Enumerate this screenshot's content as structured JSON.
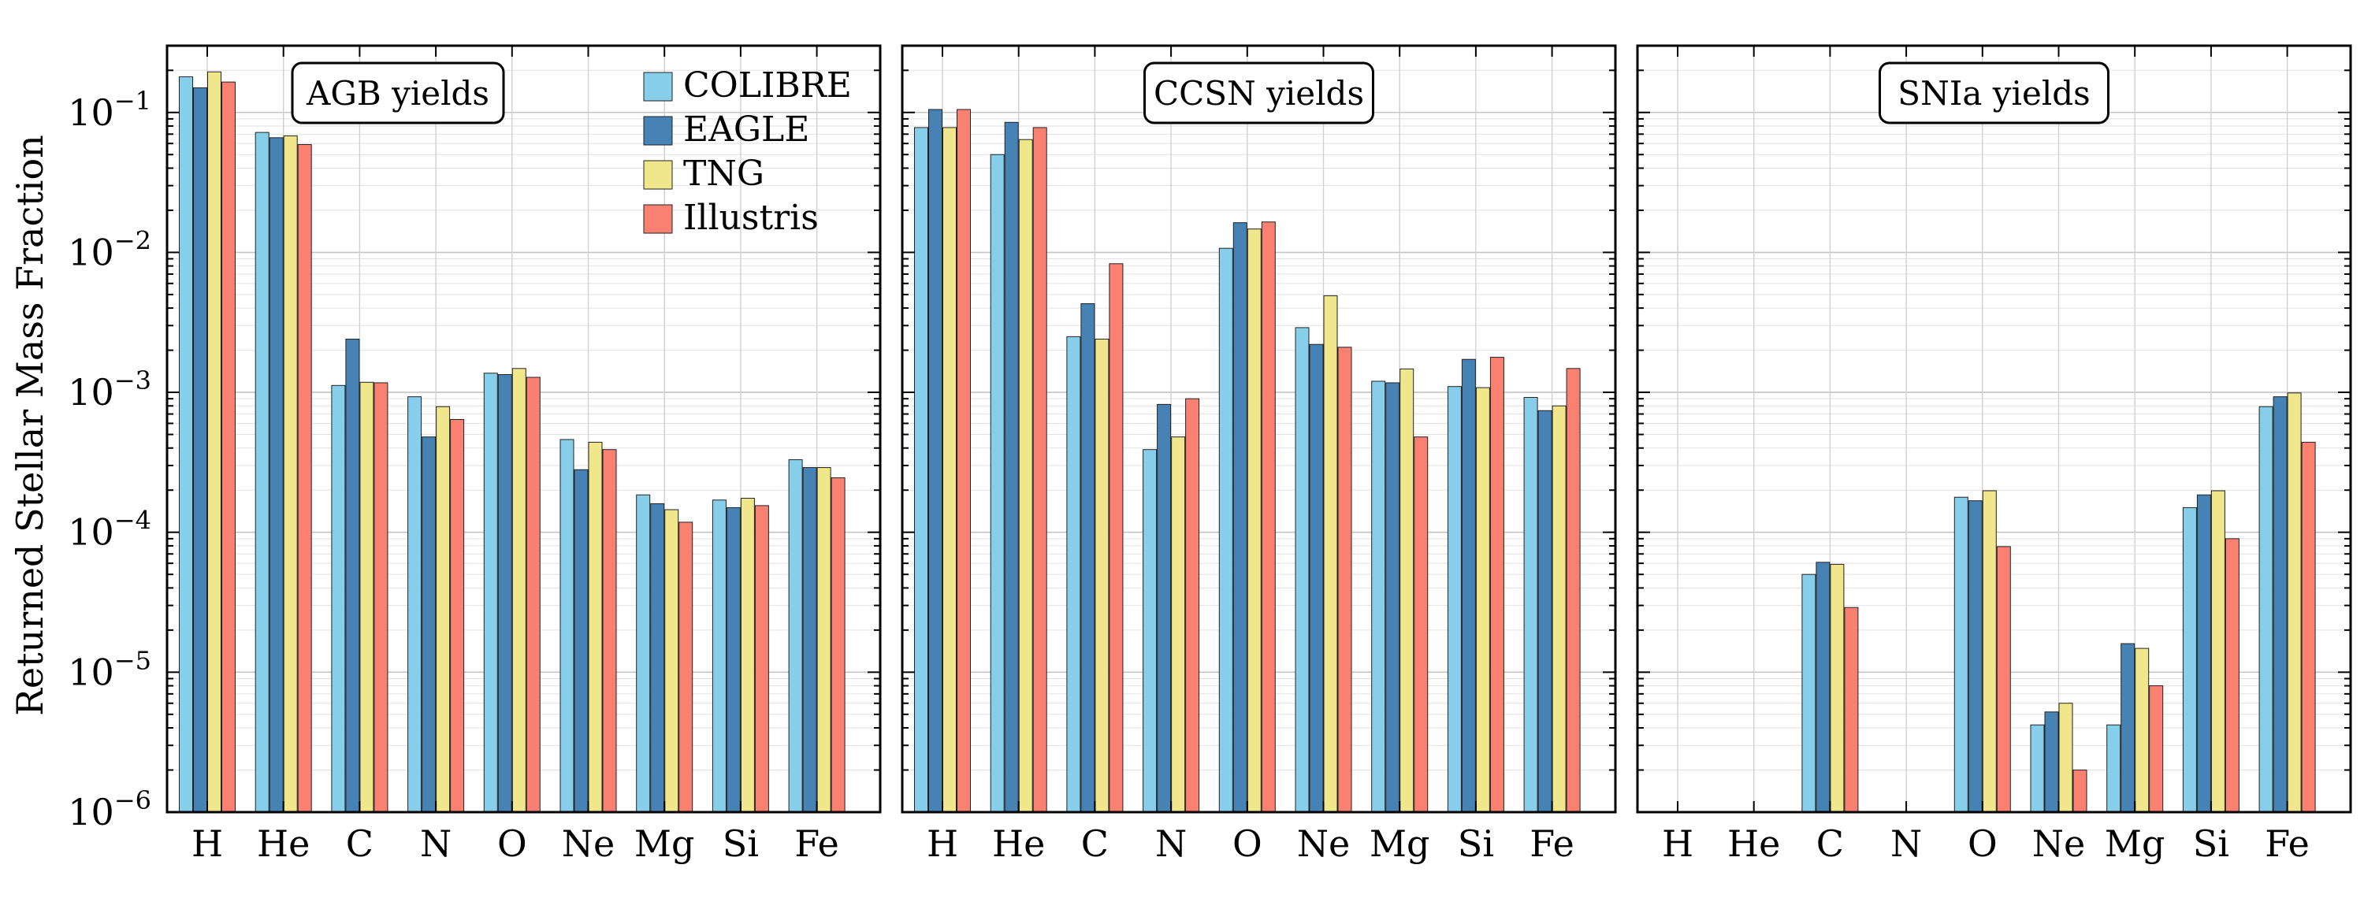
{
  "chart_data": {
    "type": "bar",
    "ylabel": "Returned Stellar Mass Fraction",
    "yscale": "log",
    "ylim": [
      1e-06,
      0.3
    ],
    "y_tick_labels": [
      {
        "value": 1e-06,
        "base": "10",
        "exp": "−6"
      },
      {
        "value": 1e-05,
        "base": "10",
        "exp": "−5"
      },
      {
        "value": 0.0001,
        "base": "10",
        "exp": "−4"
      },
      {
        "value": 0.001,
        "base": "10",
        "exp": "−3"
      },
      {
        "value": 0.01,
        "base": "10",
        "exp": "−2"
      },
      {
        "value": 0.1,
        "base": "10",
        "exp": "−1"
      }
    ],
    "grid": true,
    "legend": {
      "placement": "top-right of first panel",
      "entries": [
        {
          "name": "COLIBRE",
          "color": "#87ceeb"
        },
        {
          "name": "EAGLE",
          "color": "#4682b4"
        },
        {
          "name": "TNG",
          "color": "#f0e68c"
        },
        {
          "name": "Illustris",
          "color": "#fa8072"
        }
      ]
    },
    "categories": [
      "H",
      "He",
      "C",
      "N",
      "O",
      "Ne",
      "Mg",
      "Si",
      "Fe"
    ],
    "panels": [
      {
        "title": "AGB yields",
        "series": [
          {
            "name": "COLIBRE",
            "values": [
              0.18,
              0.072,
              0.00112,
              0.00093,
              0.00137,
              0.00046,
              0.000185,
              0.00017,
              0.00033
            ]
          },
          {
            "name": "EAGLE",
            "values": [
              0.15,
              0.066,
              0.0024,
              0.00048,
              0.00134,
              0.00028,
              0.00016,
              0.00015,
              0.00029
            ]
          },
          {
            "name": "TNG",
            "values": [
              0.195,
              0.068,
              0.00118,
              0.00079,
              0.00148,
              0.00044,
              0.000145,
              0.000175,
              0.00029
            ]
          },
          {
            "name": "Illustris",
            "values": [
              0.165,
              0.059,
              0.00117,
              0.00064,
              0.00128,
              0.00039,
              0.000118,
              0.000155,
              0.000245
            ]
          }
        ]
      },
      {
        "title": "CCSN yields",
        "series": [
          {
            "name": "COLIBRE",
            "values": [
              0.078,
              0.05,
              0.0025,
              0.00039,
              0.0107,
              0.0029,
              0.0012,
              0.0011,
              0.00092
            ]
          },
          {
            "name": "EAGLE",
            "values": [
              0.105,
              0.085,
              0.0043,
              0.00082,
              0.0163,
              0.0022,
              0.00117,
              0.00172,
              0.00074
            ]
          },
          {
            "name": "TNG",
            "values": [
              0.078,
              0.064,
              0.0024,
              0.00048,
              0.0147,
              0.0049,
              0.00147,
              0.00108,
              0.0008
            ]
          },
          {
            "name": "Illustris",
            "values": [
              0.105,
              0.078,
              0.0083,
              0.0009,
              0.0165,
              0.0021,
              0.00048,
              0.00178,
              0.00148
            ]
          }
        ]
      },
      {
        "title": "SNIa yields",
        "series": [
          {
            "name": "COLIBRE",
            "values": [
              null,
              null,
              5e-05,
              null,
              0.000178,
              4.2e-06,
              4.2e-06,
              0.00015,
              0.00079
            ]
          },
          {
            "name": "EAGLE",
            "values": [
              null,
              null,
              6.1e-05,
              null,
              0.000168,
              5.2e-06,
              1.6e-05,
              0.000185,
              0.00093
            ]
          },
          {
            "name": "TNG",
            "values": [
              null,
              null,
              5.9e-05,
              null,
              0.000198,
              6e-06,
              1.48e-05,
              0.000198,
              0.00099
            ]
          },
          {
            "name": "Illustris",
            "values": [
              null,
              null,
              2.9e-05,
              null,
              7.9e-05,
              2e-06,
              8e-06,
              9e-05,
              0.00044
            ]
          }
        ]
      }
    ]
  }
}
